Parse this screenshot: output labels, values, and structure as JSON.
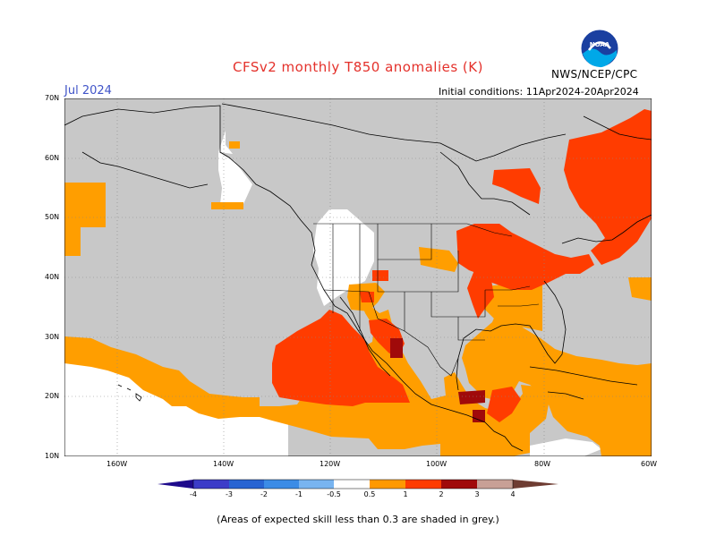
{
  "header": {
    "title": "CFSv2 monthly T850 anomalies (K)",
    "month": "Jul 2024",
    "initial_conditions": "Initial conditions: 11Apr2024-20Apr2024",
    "agency": "NWS/NCEP/CPC",
    "logo_text": "NOAA"
  },
  "axes": {
    "lat_labels": [
      "70N",
      "60N",
      "50N",
      "40N",
      "30N",
      "20N",
      "10N"
    ],
    "lon_labels": [
      "160W",
      "140W",
      "120W",
      "100W",
      "80W",
      "60W"
    ]
  },
  "colorbar": {
    "labels": [
      "-4",
      "-3",
      "-2",
      "-1",
      "-0.5",
      "0.5",
      "1",
      "2",
      "3",
      "4"
    ],
    "colors": [
      "#1e0a8c",
      "#3c3cc8",
      "#2864d2",
      "#3c8ce6",
      "#78b4f0",
      "#ffffff",
      "#ff9900",
      "#ff3c00",
      "#a00a0a",
      "#c8a096",
      "#6e3c32"
    ]
  },
  "footnote": "(Areas of expected skill less than 0.3 are shaded in grey.)",
  "legend_colors": {
    "grey": "#c8c8c8",
    "orange": "#ff9e00",
    "red": "#ff3c00",
    "darkred": "#a00a0a",
    "white": "#ffffff"
  }
}
